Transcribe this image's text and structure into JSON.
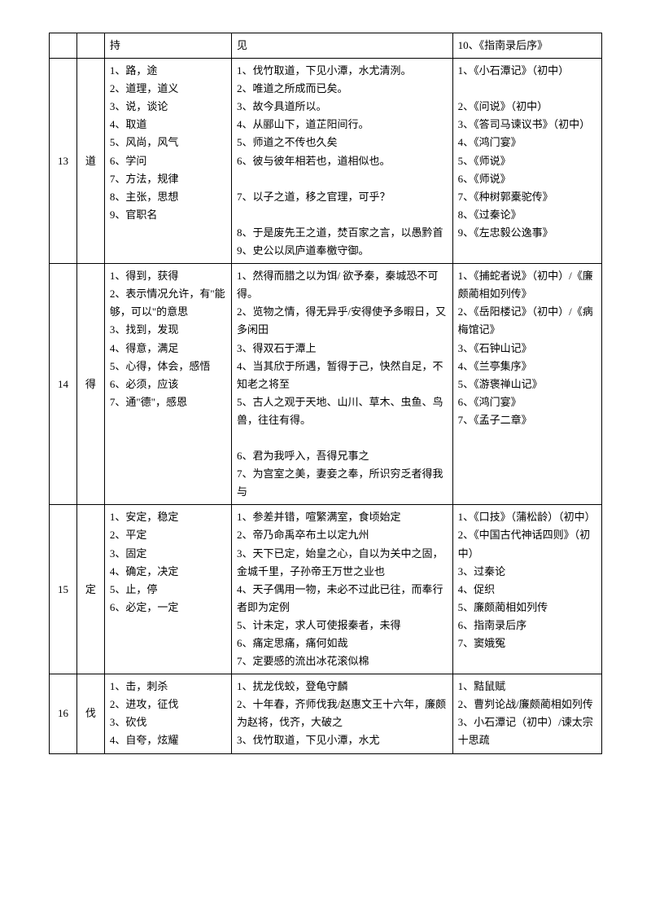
{
  "rows": [
    {
      "num": "",
      "char": "",
      "definitions": "持",
      "examples": "见",
      "sources": "10、《指南录后序》",
      "isHeader": true
    },
    {
      "num": "13",
      "char": "道",
      "definitions": "1、路，途\n2、道理，道义\n3、说，谈论\n4、取道\n5、风尚，风气\n6、学问\n7、方法，规律\n8、主张，思想\n9、官职名",
      "examples": "1、伐竹取道，下见小潭，水尤清洌。\n2、唯道之所成而已矣。\n3、故今具道所以。\n4、从郦山下，道芷阳间行。\n5、师道之不传也久矣\n6、彼与彼年相若也，道相似也。\n\n7、以子之道，移之官理，可乎？\n\n8、于是废先王之道，焚百家之言，以愚黔首\n9、史公以凤庐道奉檄守御。",
      "sources": "1、《小石潭记》（初中）\n\n2、《问说》（初中）\n3、《答司马谏议书》（初中）\n4、《鸿门宴》\n5、《师说》\n6、《师说》\n7、《种树郭橐驼传》\n8、《过秦论》\n9、《左忠毅公逸事》"
    },
    {
      "num": "14",
      "char": "得",
      "definitions": "1、得到，获得\n2、表示情况允许，有\"能够，可以\"的意思\n3、找到，发现\n4、得意，满足\n5、心得，体会，感悟\n6、必须，应该\n7、通\"德\"，感恩",
      "examples": "1、然得而腊之以为饵/ 欲予秦，秦城恐不可得。\n2、览物之情，得无异乎/安得使予多暇日，又多闲田\n3、得双石于潭上\n4、当其欣于所遇，暂得于己，快然自足，不知老之将至\n5、古人之观于天地、山川、草木、虫鱼、鸟兽，往往有得。\n\n6、君为我呼入，吾得兄事之\n7、为宫室之美，妻妾之奉，所识穷乏者得我与",
      "sources": "1、《捕蛇者说》（初中）/《廉颇蔺相如列传》\n2、《岳阳楼记》（初中）/《病梅馆记》\n3、《石钟山记》\n4、《兰亭集序》\n5、《游褒禅山记》\n6、《鸿门宴》\n7、《孟子二章》"
    },
    {
      "num": "15",
      "char": "定",
      "definitions": "1、安定，稳定\n2、平定\n3、固定\n4、确定，决定\n5、止，停\n6、必定，一定",
      "examples": "1、参差并错，喧繁满室，食顷始定\n2、帝乃命禹卒布土以定九州\n3、天下已定，始皇之心，自以为关中之固，金城千里，子孙帝王万世之业也\n4、天子偶用一物，未必不过此已往，而奉行者即为定例\n5、计未定，求人可使报秦者，未得\n6、痛定思痛，痛何如哉\n7、定要感的流出冰花滚似棉",
      "sources": "1、《口技》（蒲松龄）（初中）\n2、《中国古代神话四则》（初中）\n3、过秦论\n4、促织\n5、廉颇蔺相如列传\n6、指南录后序\n7、窦娥冤"
    },
    {
      "num": "16",
      "char": "伐",
      "definitions": "1、击，刺杀\n2、进攻，征伐\n3、砍伐\n4、自夸，炫耀",
      "examples": "1、扰龙伐蛟，登龟守麟\n2、十年春，齐师伐我/赵惠文王十六年，廉颇为赵将，伐齐，大破之\n3、伐竹取道，下见小潭，水尤",
      "sources": "1、黠鼠赋\n2、曹刿论战/廉颇蔺相如列传\n3、小石潭记（初中）/谏太宗十思疏"
    }
  ]
}
